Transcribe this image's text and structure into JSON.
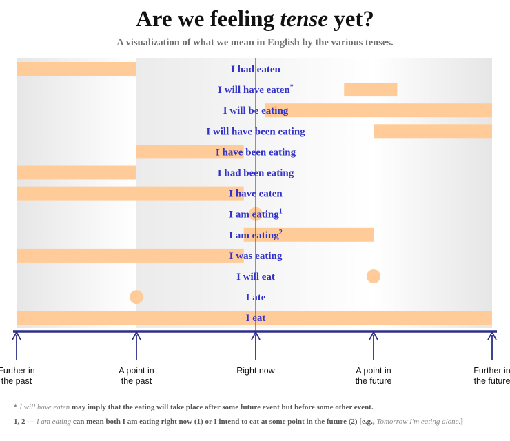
{
  "title_pre": "Are we feeling ",
  "title_em": "tense",
  "title_post": " yet?",
  "subtitle": "A visualization of what we mean in English by the various  tenses.",
  "axis": {
    "labels": [
      [
        "Further in",
        "the past"
      ],
      [
        "A point in",
        "the past"
      ],
      [
        "Right now"
      ],
      [
        "A point in",
        "the future"
      ],
      [
        "Further in",
        "the future"
      ]
    ]
  },
  "tenses": [
    {
      "label": "I had eaten",
      "sup": "",
      "bars": [
        [
          0,
          1
        ]
      ],
      "dots": []
    },
    {
      "label": "I will have eaten",
      "sup": "*",
      "bars": [
        [
          2.75,
          3.2
        ]
      ],
      "dots": []
    },
    {
      "label": "I will be eating",
      "sup": "",
      "bars": [
        [
          2.08,
          4
        ]
      ],
      "dots": []
    },
    {
      "label": "I will have been eating",
      "sup": "",
      "bars": [
        [
          3,
          4
        ]
      ],
      "dots": []
    },
    {
      "label": "I have been eating",
      "sup": "",
      "bars": [
        [
          1,
          1.9
        ]
      ],
      "dots": []
    },
    {
      "label": "I had been eating",
      "sup": "",
      "bars": [
        [
          0,
          1
        ]
      ],
      "dots": []
    },
    {
      "label": "I have eaten",
      "sup": "",
      "bars": [
        [
          0,
          1.9
        ]
      ],
      "dots": []
    },
    {
      "label": "I am eating",
      "sup": "1",
      "bars": [],
      "dots": [
        2
      ]
    },
    {
      "label": "I am eating",
      "sup": "2",
      "bars": [
        [
          1.9,
          3
        ]
      ],
      "dots": []
    },
    {
      "label": "I was eating",
      "sup": "",
      "bars": [
        [
          0,
          1.9
        ]
      ],
      "dots": []
    },
    {
      "label": "I will eat",
      "sup": "",
      "bars": [],
      "dots": [
        3
      ]
    },
    {
      "label": "I ate",
      "sup": "",
      "bars": [],
      "dots": [
        1
      ]
    },
    {
      "label": "I eat",
      "sup": "",
      "bars": [
        [
          0,
          4
        ]
      ],
      "dots": []
    }
  ],
  "footnotes": {
    "note1_marker": "* ",
    "note1_em": "I will have eaten",
    "note1_text": " may imply that the eating will take place after some future event but before some other event.",
    "note2_marker": "1, 2 — ",
    "note2_em": "I am eating",
    "note2_text": " can mean both I am eating right now (1) or I intend to eat at some point in the future (2) [e.g., ",
    "note2_example": "Tomorrow I'm eating alone.",
    "note2_end": "]"
  },
  "colors": {
    "bar": "#ffcc99",
    "label": "#3232c8",
    "now_line": "#d92a1c",
    "axis": "#2e2e88"
  }
}
